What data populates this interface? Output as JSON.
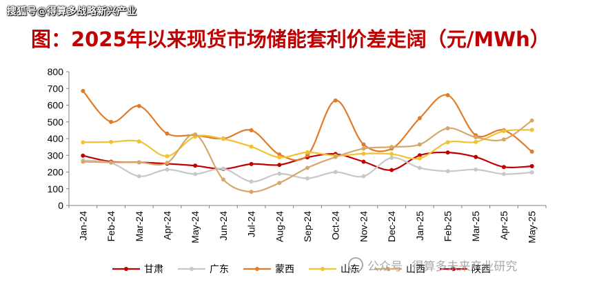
{
  "header": {
    "source_watermark": "搜狐号@得算多战略新兴产业",
    "title": "图：2025年以来现货市场储能套利价差走阔（元/MWh）"
  },
  "footer_watermark": {
    "account": "公众号",
    "name": "得算多未来产业研究"
  },
  "chart_data": {
    "type": "line",
    "title": "图：2025年以来现货市场储能套利价差走阔（元/MWh）",
    "xlabel": "",
    "ylabel": "",
    "ylim": [
      0,
      800
    ],
    "yticks": [
      0,
      100,
      200,
      300,
      400,
      500,
      600,
      700,
      800
    ],
    "grid": false,
    "legend_position": "bottom",
    "categories": [
      "Jan-24",
      "Feb-24",
      "Mar-24",
      "Apr-24",
      "May-24",
      "Jun-24",
      "Jul-24",
      "Aug-24",
      "Sep-24",
      "Oct-24",
      "Nov-24",
      "Dec-24",
      "Jan-25",
      "Feb-25",
      "Mar-25",
      "Apr-25",
      "May-25"
    ],
    "series": [
      {
        "name": "甘肃",
        "color": "#c00000",
        "values": [
          298,
          262,
          258,
          250,
          238,
          218,
          248,
          243,
          288,
          308,
          262,
          212,
          300,
          317,
          290,
          230,
          235
        ]
      },
      {
        "name": "广东",
        "color": "#c8c8c8",
        "values": [
          270,
          255,
          175,
          215,
          188,
          220,
          143,
          190,
          162,
          200,
          175,
          285,
          225,
          205,
          215,
          188,
          198
        ]
      },
      {
        "name": "蒙西",
        "color": "#e07b28",
        "values": [
          685,
          500,
          595,
          430,
          420,
          400,
          450,
          305,
          300,
          628,
          365,
          340,
          522,
          660,
          420,
          450,
          322
        ]
      },
      {
        "name": "山东",
        "color": "#f1c232",
        "values": [
          378,
          380,
          383,
          295,
          412,
          398,
          352,
          288,
          318,
          298,
          310,
          308,
          282,
          378,
          380,
          445,
          452
        ]
      },
      {
        "name": "山西",
        "color": "#d6a76a",
        "values": [
          262,
          258,
          258,
          255,
          425,
          155,
          82,
          135,
          225,
          290,
          340,
          350,
          365,
          462,
          408,
          395,
          508
        ]
      },
      {
        "name": "陕西",
        "color": "#c00000",
        "values": [
          null,
          null,
          null,
          null,
          null,
          null,
          null,
          null,
          null,
          null,
          null,
          null,
          null,
          null,
          null,
          null,
          235
        ]
      }
    ]
  }
}
